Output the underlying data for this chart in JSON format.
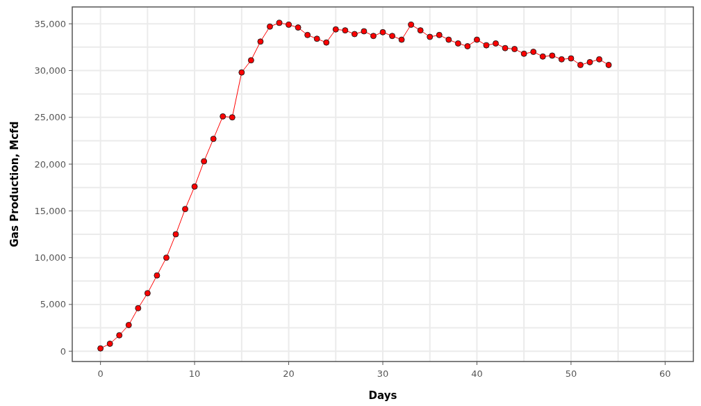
{
  "chart_data": {
    "type": "line",
    "xlabel": "Days",
    "ylabel": "Gas Production, Mcfd",
    "x": [
      0,
      1,
      2,
      3,
      4,
      5,
      6,
      7,
      8,
      9,
      10,
      11,
      12,
      13,
      14,
      15,
      16,
      17,
      18,
      19,
      20,
      21,
      22,
      23,
      24,
      25,
      26,
      27,
      28,
      29,
      30,
      31,
      32,
      33,
      34,
      35,
      36,
      37,
      38,
      39,
      40,
      41,
      42,
      43,
      44,
      45,
      46,
      47,
      48,
      49,
      50,
      51,
      52,
      53,
      54
    ],
    "series": [
      {
        "color": "#ff0000",
        "values": [
          300,
          800,
          1700,
          2800,
          4600,
          6200,
          8100,
          10000,
          12500,
          15200,
          17600,
          20300,
          22700,
          25100,
          25000,
          29800,
          31100,
          33100,
          34700,
          35100,
          34900,
          34600,
          33800,
          33400,
          33000,
          34400,
          34300,
          33900,
          34200,
          33700,
          34100,
          33700,
          33300,
          34900,
          34300,
          33600,
          33800,
          33300,
          32900,
          32600,
          33300,
          32700,
          32900,
          32400,
          32300,
          31800,
          32000,
          31500,
          31600,
          31200,
          31300,
          30600,
          30900,
          31200,
          30600
        ]
      }
    ],
    "xlim": [
      -3,
      63
    ],
    "ylim": [
      -1100,
      36800
    ],
    "xticks": [
      0,
      10,
      20,
      30,
      40,
      50,
      60
    ],
    "yticks": [
      {
        "value": 0,
        "label": "0"
      },
      {
        "value": 5000,
        "label": "5,000"
      },
      {
        "value": 10000,
        "label": "10,000"
      },
      {
        "value": 15000,
        "label": "15,000"
      },
      {
        "value": 20000,
        "label": "20,000"
      },
      {
        "value": 25000,
        "label": "25,000"
      },
      {
        "value": 30000,
        "label": "30,000"
      },
      {
        "value": 35000,
        "label": "35,000"
      }
    ],
    "grid": true,
    "marker": "circle",
    "line_style": "solid"
  }
}
